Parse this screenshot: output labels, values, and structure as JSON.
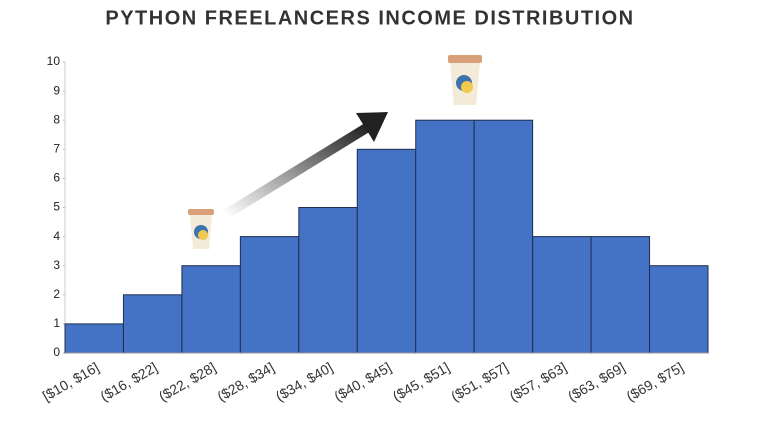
{
  "chart_data": {
    "type": "bar",
    "title": "PYTHON FREELANCERS INCOME DISTRIBUTION",
    "categories": [
      "[$10, $16]",
      "($16, $22]",
      "($22, $28]",
      "($28, $34]",
      "($34, $40]",
      "($40, $45]",
      "($45, $51]",
      "($51, $57]",
      "($57, $63]",
      "($63, $69]",
      "($69, $75]"
    ],
    "values": [
      1,
      2,
      3,
      4,
      5,
      7,
      8,
      8,
      4,
      4,
      3
    ],
    "color": "#4472c4",
    "ylim": [
      0,
      10
    ],
    "yticks": [
      0,
      1,
      2,
      3,
      4,
      5,
      6,
      7,
      8,
      9,
      10
    ],
    "grid": false
  }
}
